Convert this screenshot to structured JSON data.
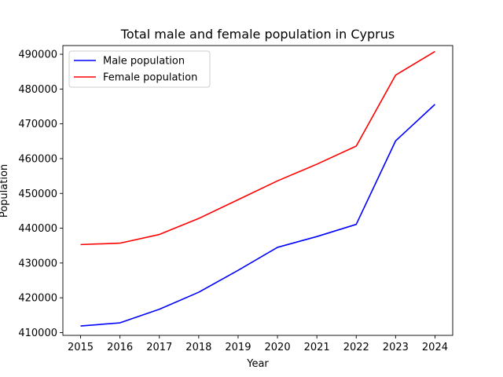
{
  "chart_data": {
    "type": "line",
    "title": "Total male and female population in Cyprus",
    "xlabel": "Year",
    "ylabel": "Population",
    "x": [
      2015,
      2016,
      2017,
      2018,
      2019,
      2020,
      2021,
      2022,
      2023,
      2024
    ],
    "xticks": [
      "2015",
      "2016",
      "2017",
      "2018",
      "2019",
      "2020",
      "2021",
      "2022",
      "2023",
      "2024"
    ],
    "ylim": [
      409200,
      492500
    ],
    "yticks": [
      410000,
      420000,
      430000,
      440000,
      450000,
      460000,
      470000,
      480000,
      490000
    ],
    "ytick_labels": [
      "410000",
      "420000",
      "430000",
      "440000",
      "450000",
      "460000",
      "470000",
      "480000",
      "490000"
    ],
    "grid": false,
    "legend_position": "top-left",
    "series": [
      {
        "name": "Male population",
        "color": "#0000ff",
        "values": [
          411900,
          412800,
          416700,
          421600,
          427900,
          434500,
          437600,
          441100,
          465100,
          475600
        ]
      },
      {
        "name": "Female population",
        "color": "#ff0000",
        "values": [
          435300,
          435700,
          438200,
          442800,
          448200,
          453600,
          458400,
          463600,
          484000,
          490800
        ]
      }
    ]
  }
}
